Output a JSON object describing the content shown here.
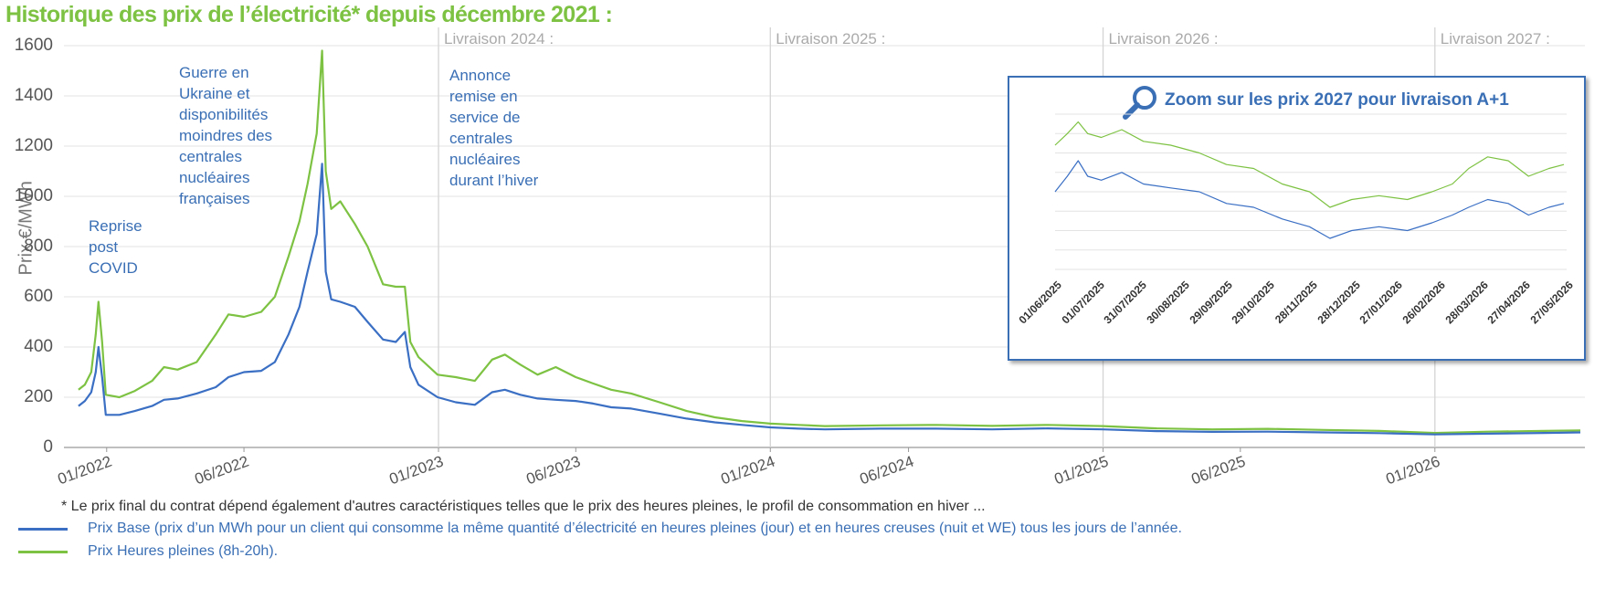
{
  "title": "Historique des prix de l’électricité* depuis décembre 2021 :",
  "colors": {
    "base": "#3a6fc4",
    "hp": "#7dc242",
    "title": "#7dc242",
    "annotation": "#3a6fb5",
    "inset_border": "#3a6fb5"
  },
  "footnote": "* Le prix final du contrat dépend également d'autres caractéristiques telles que le prix des heures pleines, le profil de consommation en hiver ...",
  "legend": [
    {
      "label": "Prix Base (prix d’un MWh pour un client qui consomme la même quantité d’électricité en heures pleines (jour) et en heures creuses (nuit et WE) tous les jours de l’année.",
      "color": "#3a6fc4"
    },
    {
      "label": "Prix Heures pleines (8h-20h).",
      "color": "#7dc242"
    }
  ],
  "annotations": [
    {
      "text": "Reprise\npost\nCOVID"
    },
    {
      "text": "Guerre en\nUkraine et\ndisponibilités\nmoindres des\ncentrales\nnucléaires\nfrançaises"
    },
    {
      "text": "Annonce\nremise en\nservice de\ncentrales\nnucléaires\ndurant l’hiver"
    }
  ],
  "delivery_labels": [
    "Livraison 2024 :",
    "Livraison 2025 :",
    "Livraison 2026 :",
    "Livraison 2027 :"
  ],
  "inset": {
    "title": "Zoom sur les prix 2027 pour livraison A+1",
    "icon": "magnifier-icon",
    "x_ticks": [
      "01/06/2025",
      "01/07/2025",
      "31/07/2025",
      "30/08/2025",
      "29/09/2025",
      "29/10/2025",
      "28/11/2025",
      "28/12/2025",
      "27/01/2026",
      "26/02/2026",
      "28/03/2026",
      "27/04/2026",
      "27/05/2026"
    ]
  },
  "chart_data": [
    {
      "type": "line",
      "ylabel": "Prix €/MWh",
      "xlabel": "",
      "ylim": [
        0,
        1600
      ],
      "yticks": [
        0,
        200,
        400,
        600,
        800,
        1000,
        1200,
        1400,
        1600
      ],
      "x_tick_labels": [
        "01/2022",
        "06/2022",
        "01/2023",
        "06/2023",
        "01/2024",
        "06/2024",
        "01/2025",
        "06/2025",
        "01/2026"
      ],
      "x_tick_dates": [
        "2022-01-01",
        "2022-06-01",
        "2023-01-01",
        "2023-06-01",
        "2024-01-01",
        "2024-06-01",
        "2025-01-01",
        "2025-06-01",
        "2026-01-01"
      ],
      "grid": true,
      "series": [
        {
          "name": "Prix Base",
          "color": "#3a6fc4",
          "points": [
            [
              "2021-12-01",
              165
            ],
            [
              "2021-12-08",
              185
            ],
            [
              "2021-12-15",
              220
            ],
            [
              "2021-12-20",
              300
            ],
            [
              "2021-12-23",
              400
            ],
            [
              "2021-12-27",
              280
            ],
            [
              "2021-12-31",
              130
            ],
            [
              "2022-01-15",
              130
            ],
            [
              "2022-02-01",
              145
            ],
            [
              "2022-02-20",
              165
            ],
            [
              "2022-03-05",
              190
            ],
            [
              "2022-03-20",
              195
            ],
            [
              "2022-04-10",
              215
            ],
            [
              "2022-05-01",
              240
            ],
            [
              "2022-05-15",
              280
            ],
            [
              "2022-06-01",
              300
            ],
            [
              "2022-06-20",
              305
            ],
            [
              "2022-07-05",
              340
            ],
            [
              "2022-07-20",
              450
            ],
            [
              "2022-08-01",
              560
            ],
            [
              "2022-08-10",
              700
            ],
            [
              "2022-08-20",
              850
            ],
            [
              "2022-08-26",
              1130
            ],
            [
              "2022-08-30",
              700
            ],
            [
              "2022-09-05",
              590
            ],
            [
              "2022-09-15",
              580
            ],
            [
              "2022-10-01",
              560
            ],
            [
              "2022-10-15",
              500
            ],
            [
              "2022-11-01",
              430
            ],
            [
              "2022-11-15",
              420
            ],
            [
              "2022-11-25",
              460
            ],
            [
              "2022-12-01",
              320
            ],
            [
              "2022-12-10",
              250
            ],
            [
              "2022-12-31",
              200
            ],
            [
              "2023-01-20",
              180
            ],
            [
              "2023-02-10",
              170
            ],
            [
              "2023-03-01",
              220
            ],
            [
              "2023-03-15",
              230
            ],
            [
              "2023-04-01",
              210
            ],
            [
              "2023-04-20",
              195
            ],
            [
              "2023-05-10",
              190
            ],
            [
              "2023-06-01",
              185
            ],
            [
              "2023-06-20",
              175
            ],
            [
              "2023-07-10",
              160
            ],
            [
              "2023-08-01",
              155
            ],
            [
              "2023-09-01",
              135
            ],
            [
              "2023-10-01",
              115
            ],
            [
              "2023-11-01",
              100
            ],
            [
              "2023-12-01",
              90
            ],
            [
              "2024-01-01",
              80
            ],
            [
              "2024-02-01",
              75
            ],
            [
              "2024-03-01",
              72
            ],
            [
              "2024-05-01",
              75
            ],
            [
              "2024-07-01",
              75
            ],
            [
              "2024-09-01",
              72
            ],
            [
              "2024-11-01",
              76
            ],
            [
              "2025-01-01",
              72
            ],
            [
              "2025-03-01",
              65
            ],
            [
              "2025-05-01",
              62
            ],
            [
              "2025-07-01",
              63
            ],
            [
              "2025-09-01",
              60
            ],
            [
              "2025-11-01",
              57
            ],
            [
              "2026-01-01",
              52
            ],
            [
              "2026-03-01",
              55
            ],
            [
              "2026-05-01",
              58
            ],
            [
              "2026-06-10",
              60
            ]
          ]
        },
        {
          "name": "Prix Heures pleines",
          "color": "#7dc242",
          "points": [
            [
              "2021-12-01",
              230
            ],
            [
              "2021-12-08",
              250
            ],
            [
              "2021-12-15",
              300
            ],
            [
              "2021-12-20",
              450
            ],
            [
              "2021-12-23",
              580
            ],
            [
              "2021-12-27",
              420
            ],
            [
              "2021-12-31",
              210
            ],
            [
              "2022-01-15",
              200
            ],
            [
              "2022-02-01",
              225
            ],
            [
              "2022-02-20",
              265
            ],
            [
              "2022-03-05",
              320
            ],
            [
              "2022-03-20",
              310
            ],
            [
              "2022-04-10",
              340
            ],
            [
              "2022-05-01",
              450
            ],
            [
              "2022-05-15",
              530
            ],
            [
              "2022-06-01",
              520
            ],
            [
              "2022-06-20",
              540
            ],
            [
              "2022-07-05",
              600
            ],
            [
              "2022-07-20",
              760
            ],
            [
              "2022-08-01",
              900
            ],
            [
              "2022-08-10",
              1050
            ],
            [
              "2022-08-20",
              1250
            ],
            [
              "2022-08-26",
              1580
            ],
            [
              "2022-08-30",
              1100
            ],
            [
              "2022-09-05",
              950
            ],
            [
              "2022-09-15",
              980
            ],
            [
              "2022-10-01",
              890
            ],
            [
              "2022-10-15",
              800
            ],
            [
              "2022-11-01",
              650
            ],
            [
              "2022-11-15",
              640
            ],
            [
              "2022-11-25",
              640
            ],
            [
              "2022-12-01",
              420
            ],
            [
              "2022-12-10",
              360
            ],
            [
              "2022-12-31",
              290
            ],
            [
              "2023-01-20",
              280
            ],
            [
              "2023-02-10",
              265
            ],
            [
              "2023-03-01",
              350
            ],
            [
              "2023-03-15",
              370
            ],
            [
              "2023-04-01",
              330
            ],
            [
              "2023-04-20",
              290
            ],
            [
              "2023-05-10",
              320
            ],
            [
              "2023-06-01",
              280
            ],
            [
              "2023-06-20",
              255
            ],
            [
              "2023-07-10",
              230
            ],
            [
              "2023-08-01",
              215
            ],
            [
              "2023-09-01",
              180
            ],
            [
              "2023-10-01",
              145
            ],
            [
              "2023-11-01",
              120
            ],
            [
              "2023-12-01",
              105
            ],
            [
              "2024-01-01",
              95
            ],
            [
              "2024-02-01",
              90
            ],
            [
              "2024-03-01",
              85
            ],
            [
              "2024-05-01",
              88
            ],
            [
              "2024-07-01",
              90
            ],
            [
              "2024-09-01",
              86
            ],
            [
              "2024-11-01",
              90
            ],
            [
              "2025-01-01",
              85
            ],
            [
              "2025-03-01",
              76
            ],
            [
              "2025-05-01",
              72
            ],
            [
              "2025-07-01",
              74
            ],
            [
              "2025-09-01",
              70
            ],
            [
              "2025-11-01",
              66
            ],
            [
              "2026-01-01",
              58
            ],
            [
              "2026-03-01",
              63
            ],
            [
              "2026-05-01",
              66
            ],
            [
              "2026-06-10",
              68
            ]
          ]
        }
      ]
    },
    {
      "type": "line",
      "title": "Zoom sur les prix 2027 pour livraison A+1",
      "xlabel": "",
      "ylabel": "",
      "x_tick_labels": [
        "01/06/2025",
        "01/07/2025",
        "31/07/2025",
        "30/08/2025",
        "29/09/2025",
        "29/10/2025",
        "28/11/2025",
        "28/12/2025",
        "27/01/2026",
        "26/02/2026",
        "28/03/2026",
        "27/04/2026",
        "27/05/2026"
      ],
      "ylim": [
        50,
        90
      ],
      "grid": true,
      "series": [
        {
          "name": "Prix Base",
          "color": "#3a6fc4",
          "points": [
            [
              "2025-06-01",
              70
            ],
            [
              "2025-06-10",
              74
            ],
            [
              "2025-06-18",
              78
            ],
            [
              "2025-06-25",
              74
            ],
            [
              "2025-07-05",
              73
            ],
            [
              "2025-07-20",
              75
            ],
            [
              "2025-08-05",
              72
            ],
            [
              "2025-08-25",
              71
            ],
            [
              "2025-09-15",
              70
            ],
            [
              "2025-10-05",
              67
            ],
            [
              "2025-10-25",
              66
            ],
            [
              "2025-11-15",
              63
            ],
            [
              "2025-12-05",
              61
            ],
            [
              "2025-12-20",
              58
            ],
            [
              "2026-01-05",
              60
            ],
            [
              "2026-01-25",
              61
            ],
            [
              "2026-02-15",
              60
            ],
            [
              "2026-03-05",
              62
            ],
            [
              "2026-03-20",
              64
            ],
            [
              "2026-04-01",
              66
            ],
            [
              "2026-04-15",
              68
            ],
            [
              "2026-04-30",
              67
            ],
            [
              "2026-05-15",
              64
            ],
            [
              "2026-05-30",
              66
            ],
            [
              "2026-06-10",
              67
            ]
          ]
        },
        {
          "name": "Prix Heures pleines",
          "color": "#7dc242",
          "points": [
            [
              "2025-06-01",
              82
            ],
            [
              "2025-06-10",
              85
            ],
            [
              "2025-06-18",
              88
            ],
            [
              "2025-06-25",
              85
            ],
            [
              "2025-07-05",
              84
            ],
            [
              "2025-07-20",
              86
            ],
            [
              "2025-08-05",
              83
            ],
            [
              "2025-08-25",
              82
            ],
            [
              "2025-09-15",
              80
            ],
            [
              "2025-10-05",
              77
            ],
            [
              "2025-10-25",
              76
            ],
            [
              "2025-11-15",
              72
            ],
            [
              "2025-12-05",
              70
            ],
            [
              "2025-12-20",
              66
            ],
            [
              "2026-01-05",
              68
            ],
            [
              "2026-01-25",
              69
            ],
            [
              "2026-02-15",
              68
            ],
            [
              "2026-03-05",
              70
            ],
            [
              "2026-03-20",
              72
            ],
            [
              "2026-04-01",
              76
            ],
            [
              "2026-04-15",
              79
            ],
            [
              "2026-04-30",
              78
            ],
            [
              "2026-05-15",
              74
            ],
            [
              "2026-05-30",
              76
            ],
            [
              "2026-06-10",
              77
            ]
          ]
        }
      ]
    }
  ]
}
